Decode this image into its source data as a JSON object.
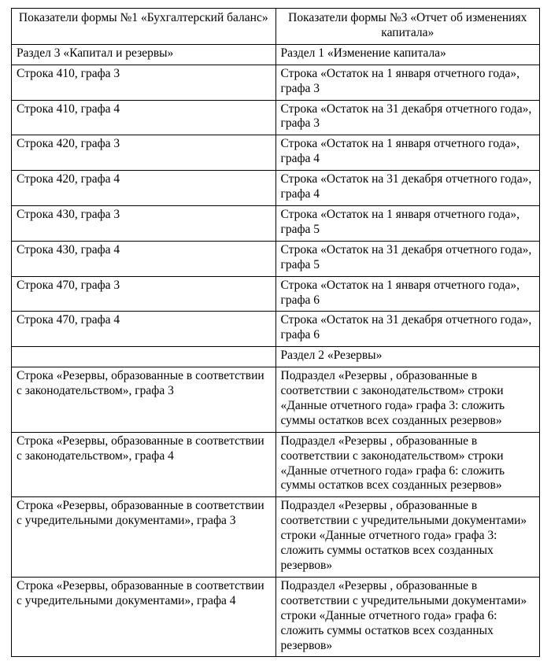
{
  "table": {
    "type": "table",
    "background_color": "#ffffff",
    "border_color": "#000000",
    "text_color": "#000000",
    "font_family": "Times New Roman",
    "font_size_pt": 12,
    "column_widths_pct": [
      50,
      50
    ],
    "columns": [
      "Показатели формы №1 «Бухгалтерский баланс»",
      "Показатели формы №3 «Отчет об изменениях капитала»"
    ],
    "rows": [
      [
        "Раздел 3 «Капитал и резервы»",
        "Раздел 1 «Изменение капитала»"
      ],
      [
        "Строка 410, графа 3",
        "Строка «Остаток на 1 января отчетного года», графа 3"
      ],
      [
        "Строка 410, графа 4",
        "Строка «Остаток на 31 декабря отчетного года», графа 3"
      ],
      [
        "Строка 420, графа 3",
        "Строка «Остаток на 1 января отчетного года», графа 4"
      ],
      [
        "Строка 420, графа 4",
        "Строка «Остаток на 31 декабря отчетного года», графа 4"
      ],
      [
        "Строка 430, графа 3",
        "Строка «Остаток на 1 января отчетного года», графа 5"
      ],
      [
        "Строка 430, графа 4",
        "Строка «Остаток на 31 декабря отчетного года», графа 5"
      ],
      [
        "Строка 470, графа 3",
        "Строка «Остаток на 1 января отчетного года», графа 6"
      ],
      [
        "Строка 470, графа 4",
        "Строка «Остаток на 31 декабря отчетного года», графа 6"
      ],
      [
        "",
        "Раздел 2 «Резервы»"
      ],
      [
        "Строка «Резервы, образованные в соответствии с законодательством», графа 3",
        "Подраздел «Резервы , образованные в соответствии с законодательством» строки «Данные отчетного года» графа 3: сложить суммы остатков всех созданных резервов»"
      ],
      [
        "Строка «Резервы, образованные в соответствии с законодательством», графа 4",
        "Подраздел «Резервы , образованные в соответствии с законодательством» строки «Данные отчетного года» графа 6: сложить суммы остатков всех созданных резервов»"
      ],
      [
        "Строка «Резервы, образованные в соответствии с учредительными документами», графа 3",
        "Подраздел «Резервы , образованные в соответствии с учредительными документами» строки «Данные отчетного года» графа 3: сложить суммы остатков всех созданных резервов»"
      ],
      [
        "Строка «Резервы, образованные в соответствии с учредительными документами», графа 4",
        "Подраздел «Резервы , образованные в соответствии с учредительными документами» строки «Данные отчетного года» графа 6: сложить суммы остатков всех созданных резервов»"
      ]
    ]
  }
}
